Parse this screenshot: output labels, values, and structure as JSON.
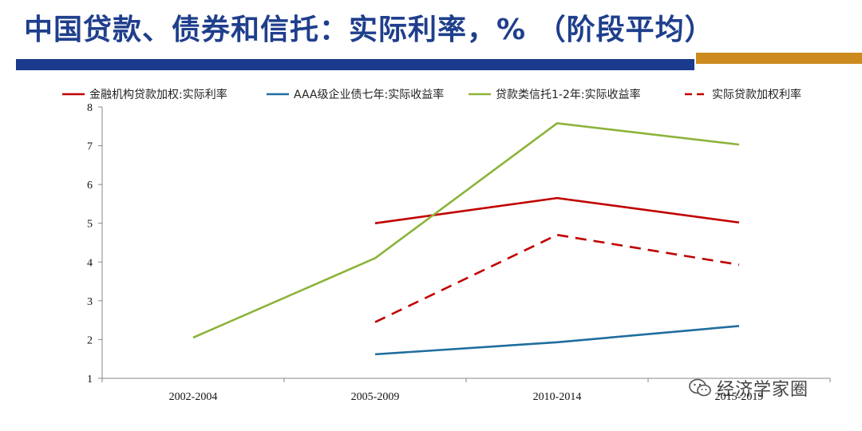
{
  "slide": {
    "title": "中国贷款、债券和信托：实际利率，% （阶段平均）"
  },
  "watermark": {
    "text": "经济学家圈"
  },
  "colors": {
    "title": "#1f3f8c",
    "bar_navy": "#1a3a8e",
    "bar_gold": "#cd8a1f"
  },
  "chart_data": {
    "type": "line",
    "categories": [
      "2002-2004",
      "2005-2009",
      "2010-2014",
      "2015-2019"
    ],
    "ylim": [
      1,
      8
    ],
    "yticks": [
      1,
      2,
      3,
      4,
      5,
      6,
      7,
      8
    ],
    "legend_position": "top",
    "grid": false,
    "series": [
      {
        "name": "金融机构贷款加权:实际利率",
        "color": "#c00000",
        "dash": false,
        "values": [
          null,
          5.0,
          5.65,
          5.02
        ]
      },
      {
        "name": "AAA级企业债七年:实际收益率",
        "color": "#1f6e9e",
        "dash": false,
        "values": [
          null,
          1.62,
          1.93,
          2.35
        ]
      },
      {
        "name": "贷款类信托1-2年:实际收益率",
        "color": "#8db33a",
        "dash": false,
        "values": [
          2.05,
          4.1,
          7.58,
          7.03
        ]
      },
      {
        "name": "实际贷款加权利率",
        "color": "#c00000",
        "dash": true,
        "values": [
          null,
          2.45,
          4.7,
          3.93
        ]
      }
    ]
  }
}
